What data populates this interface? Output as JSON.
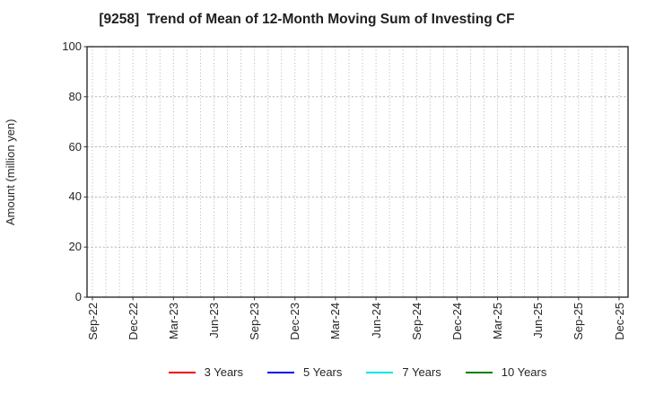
{
  "chart_data": {
    "type": "line",
    "title": "[9258]  Trend of Mean of 12-Month Moving Sum of Investing CF",
    "ylabel": "Amount (million yen)",
    "ylim": [
      0,
      100
    ],
    "yticks": [
      0,
      20,
      40,
      60,
      80,
      100
    ],
    "x_tick_labels": [
      "Sep-22",
      "Dec-22",
      "Mar-23",
      "Jun-23",
      "Sep-23",
      "Dec-23",
      "Mar-24",
      "Jun-24",
      "Sep-24",
      "Dec-24",
      "Mar-25",
      "Jun-25",
      "Sep-25",
      "Dec-25"
    ],
    "months_total": 40,
    "months_per_major_tick": 3,
    "grid": true,
    "legend_position": "bottom",
    "series": [
      {
        "name": "3 Years",
        "color": "#ee0000",
        "values": []
      },
      {
        "name": "5 Years",
        "color": "#0000ee",
        "values": []
      },
      {
        "name": "7 Years",
        "color": "#00e5e5",
        "values": []
      },
      {
        "name": "10 Years",
        "color": "#007f00",
        "values": []
      }
    ]
  },
  "colors": {
    "background": "#ffffff",
    "frame": "#2e2e2e",
    "grid": "#a9a9a9",
    "tick": "#333333",
    "text": "#262626",
    "title": "#1f1f1f"
  }
}
